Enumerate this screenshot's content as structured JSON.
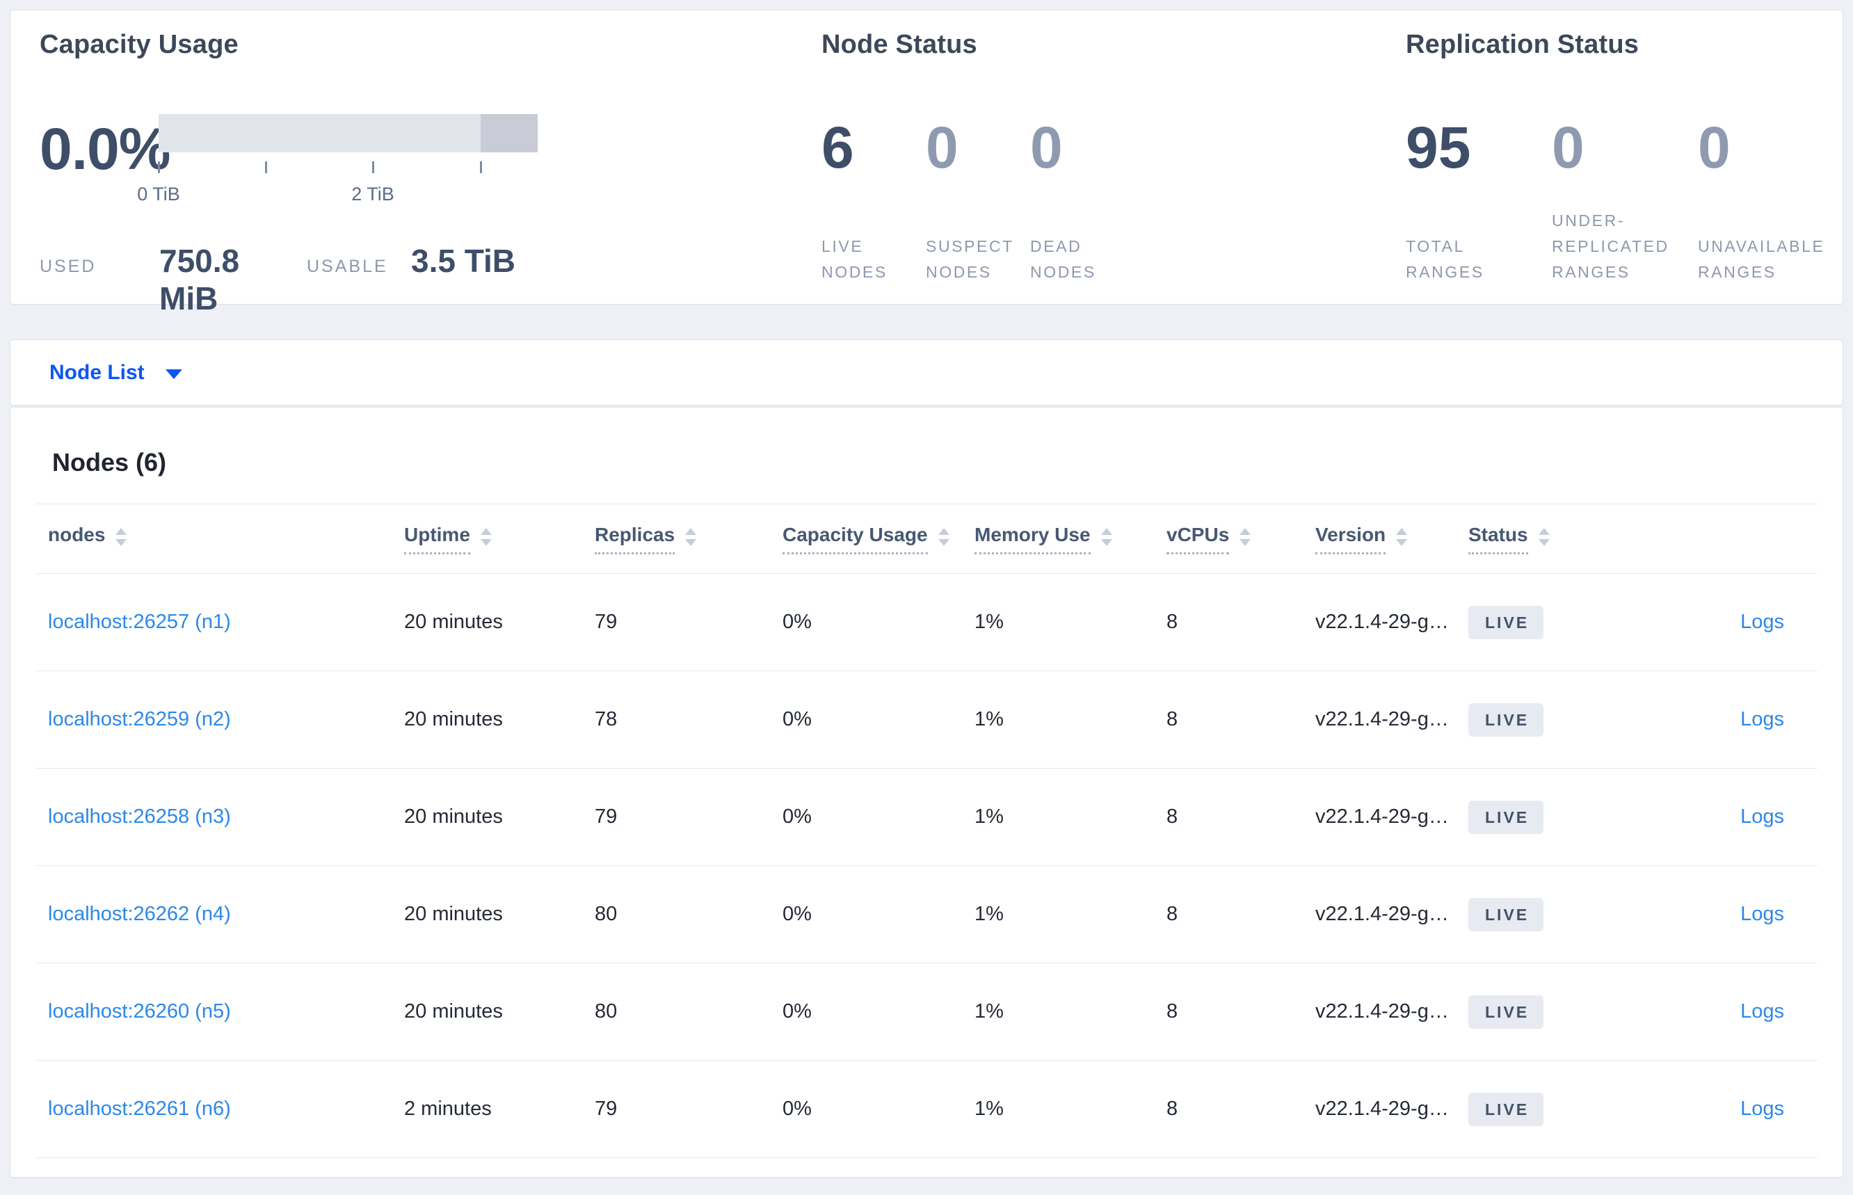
{
  "summary": {
    "capacity": {
      "title": "Capacity Usage",
      "percent": "0.0%",
      "tick_labels": [
        "0 TiB",
        "",
        "2 TiB",
        ""
      ],
      "used_label": "USED",
      "used_value": "750.8 MiB",
      "usable_label": "USABLE",
      "usable_value": "3.5 TiB"
    },
    "node_status": {
      "title": "Node Status",
      "stats": [
        {
          "value": "6",
          "label": "LIVE NODES"
        },
        {
          "value": "0",
          "label": "SUSPECT NODES"
        },
        {
          "value": "0",
          "label": "DEAD NODES"
        }
      ]
    },
    "replication": {
      "title": "Replication Status",
      "stats": [
        {
          "value": "95",
          "label": "TOTAL RANGES"
        },
        {
          "value": "0",
          "label": "UNDER-REPLICATED RANGES"
        },
        {
          "value": "0",
          "label": "UNAVAILABLE RANGES"
        }
      ]
    }
  },
  "node_list": {
    "label": "Node List"
  },
  "nodes_section": {
    "heading": "Nodes (6)",
    "columns": [
      {
        "key": "nodes",
        "label": "nodes",
        "tooltip": false,
        "arrows": true
      },
      {
        "key": "uptime",
        "label": "Uptime",
        "tooltip": true,
        "arrows": true
      },
      {
        "key": "replicas",
        "label": "Replicas",
        "tooltip": true,
        "arrows": true
      },
      {
        "key": "capacity",
        "label": "Capacity Usage",
        "tooltip": true,
        "arrows": true
      },
      {
        "key": "memory",
        "label": "Memory Use",
        "tooltip": true,
        "arrows": true
      },
      {
        "key": "vcpus",
        "label": "vCPUs",
        "tooltip": true,
        "arrows": true
      },
      {
        "key": "version",
        "label": "Version",
        "tooltip": true,
        "arrows": true
      },
      {
        "key": "status",
        "label": "Status",
        "tooltip": true,
        "arrows": true
      },
      {
        "key": "logs",
        "label": "",
        "tooltip": false,
        "arrows": false
      }
    ],
    "rows": [
      {
        "node": "localhost:26257 (n1)",
        "uptime": "20 minutes",
        "replicas": "79",
        "capacity": "0%",
        "memory": "1%",
        "vcpus": "8",
        "version": "v22.1.4-29-g…",
        "status": "LIVE",
        "logs_label": "Logs"
      },
      {
        "node": "localhost:26259 (n2)",
        "uptime": "20 minutes",
        "replicas": "78",
        "capacity": "0%",
        "memory": "1%",
        "vcpus": "8",
        "version": "v22.1.4-29-g…",
        "status": "LIVE",
        "logs_label": "Logs"
      },
      {
        "node": "localhost:26258 (n3)",
        "uptime": "20 minutes",
        "replicas": "79",
        "capacity": "0%",
        "memory": "1%",
        "vcpus": "8",
        "version": "v22.1.4-29-g…",
        "status": "LIVE",
        "logs_label": "Logs"
      },
      {
        "node": "localhost:26262 (n4)",
        "uptime": "20 minutes",
        "replicas": "80",
        "capacity": "0%",
        "memory": "1%",
        "vcpus": "8",
        "version": "v22.1.4-29-g…",
        "status": "LIVE",
        "logs_label": "Logs"
      },
      {
        "node": "localhost:26260 (n5)",
        "uptime": "20 minutes",
        "replicas": "80",
        "capacity": "0%",
        "memory": "1%",
        "vcpus": "8",
        "version": "v22.1.4-29-g…",
        "status": "LIVE",
        "logs_label": "Logs"
      },
      {
        "node": "localhost:26261 (n6)",
        "uptime": "2 minutes",
        "replicas": "79",
        "capacity": "0%",
        "memory": "1%",
        "vcpus": "8",
        "version": "v22.1.4-29-g…",
        "status": "LIVE",
        "logs_label": "Logs"
      }
    ]
  },
  "colors": {
    "page_bg": "#eef0f5",
    "accent_blue": "#0d56f2",
    "link_blue": "#2b88ea",
    "stat_primary": "#3e4e68",
    "stat_muted": "#8e9ab0",
    "bar_light": "#e2e4eb",
    "bar_dark": "#c9ccd7",
    "badge_bg": "#e7eaf1"
  }
}
